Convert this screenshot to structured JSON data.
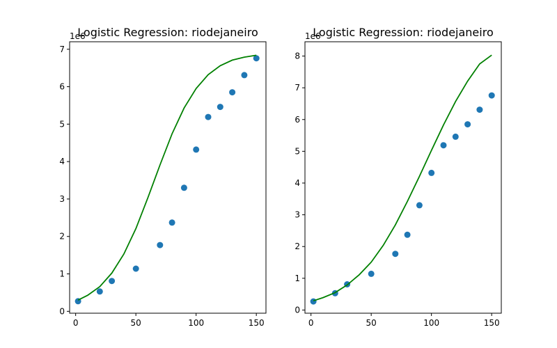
{
  "chart_data": [
    {
      "type": "scatter",
      "title": "Logistic Regression: riodejaneiro",
      "xlabel": "",
      "ylabel": "",
      "xlim": [
        -5,
        158
      ],
      "ylim": [
        -0.05,
        7.2
      ],
      "y_offset_label": "1e6",
      "xticks": [
        0,
        50,
        100,
        150
      ],
      "yticks": [
        0,
        1,
        2,
        3,
        4,
        5,
        6,
        7
      ],
      "grid": false,
      "series": [
        {
          "kind": "points",
          "color": "#1f77b4",
          "points": [
            [
              2,
              0.27
            ],
            [
              20,
              0.53
            ],
            [
              30,
              0.81
            ],
            [
              50,
              1.14
            ],
            [
              70,
              1.77
            ],
            [
              80,
              2.37
            ],
            [
              90,
              3.3
            ],
            [
              100,
              4.32
            ],
            [
              110,
              5.19
            ],
            [
              120,
              5.46
            ],
            [
              130,
              5.85
            ],
            [
              140,
              6.31
            ],
            [
              150,
              6.76
            ]
          ]
        },
        {
          "kind": "line",
          "color": "#008000",
          "points": [
            [
              2,
              0.3
            ],
            [
              10,
              0.43
            ],
            [
              20,
              0.66
            ],
            [
              30,
              1.02
            ],
            [
              40,
              1.53
            ],
            [
              50,
              2.21
            ],
            [
              60,
              3.04
            ],
            [
              70,
              3.91
            ],
            [
              80,
              4.74
            ],
            [
              90,
              5.43
            ],
            [
              100,
              5.95
            ],
            [
              110,
              6.32
            ],
            [
              120,
              6.56
            ],
            [
              130,
              6.71
            ],
            [
              140,
              6.79
            ],
            [
              150,
              6.84
            ]
          ]
        }
      ]
    },
    {
      "type": "scatter",
      "title": "Logistic Regression: riodejaneiro",
      "xlabel": "",
      "ylabel": "",
      "xlim": [
        -5,
        158
      ],
      "ylim": [
        -0.1,
        8.45
      ],
      "y_offset_label": "1e6",
      "xticks": [
        0,
        50,
        100,
        150
      ],
      "yticks": [
        0,
        1,
        2,
        3,
        4,
        5,
        6,
        7,
        8
      ],
      "grid": false,
      "series": [
        {
          "kind": "points",
          "color": "#1f77b4",
          "points": [
            [
              2,
              0.27
            ],
            [
              20,
              0.53
            ],
            [
              30,
              0.81
            ],
            [
              50,
              1.14
            ],
            [
              70,
              1.77
            ],
            [
              80,
              2.37
            ],
            [
              90,
              3.3
            ],
            [
              100,
              4.32
            ],
            [
              110,
              5.19
            ],
            [
              120,
              5.46
            ],
            [
              130,
              5.85
            ],
            [
              140,
              6.31
            ],
            [
              150,
              6.76
            ]
          ]
        },
        {
          "kind": "line",
          "color": "#008000",
          "points": [
            [
              2,
              0.29
            ],
            [
              10,
              0.39
            ],
            [
              20,
              0.55
            ],
            [
              30,
              0.79
            ],
            [
              40,
              1.11
            ],
            [
              50,
              1.51
            ],
            [
              60,
              2.04
            ],
            [
              70,
              2.68
            ],
            [
              80,
              3.42
            ],
            [
              90,
              4.21
            ],
            [
              100,
              5.03
            ],
            [
              110,
              5.83
            ],
            [
              120,
              6.57
            ],
            [
              130,
              7.21
            ],
            [
              140,
              7.75
            ],
            [
              150,
              8.03
            ]
          ]
        }
      ]
    }
  ]
}
